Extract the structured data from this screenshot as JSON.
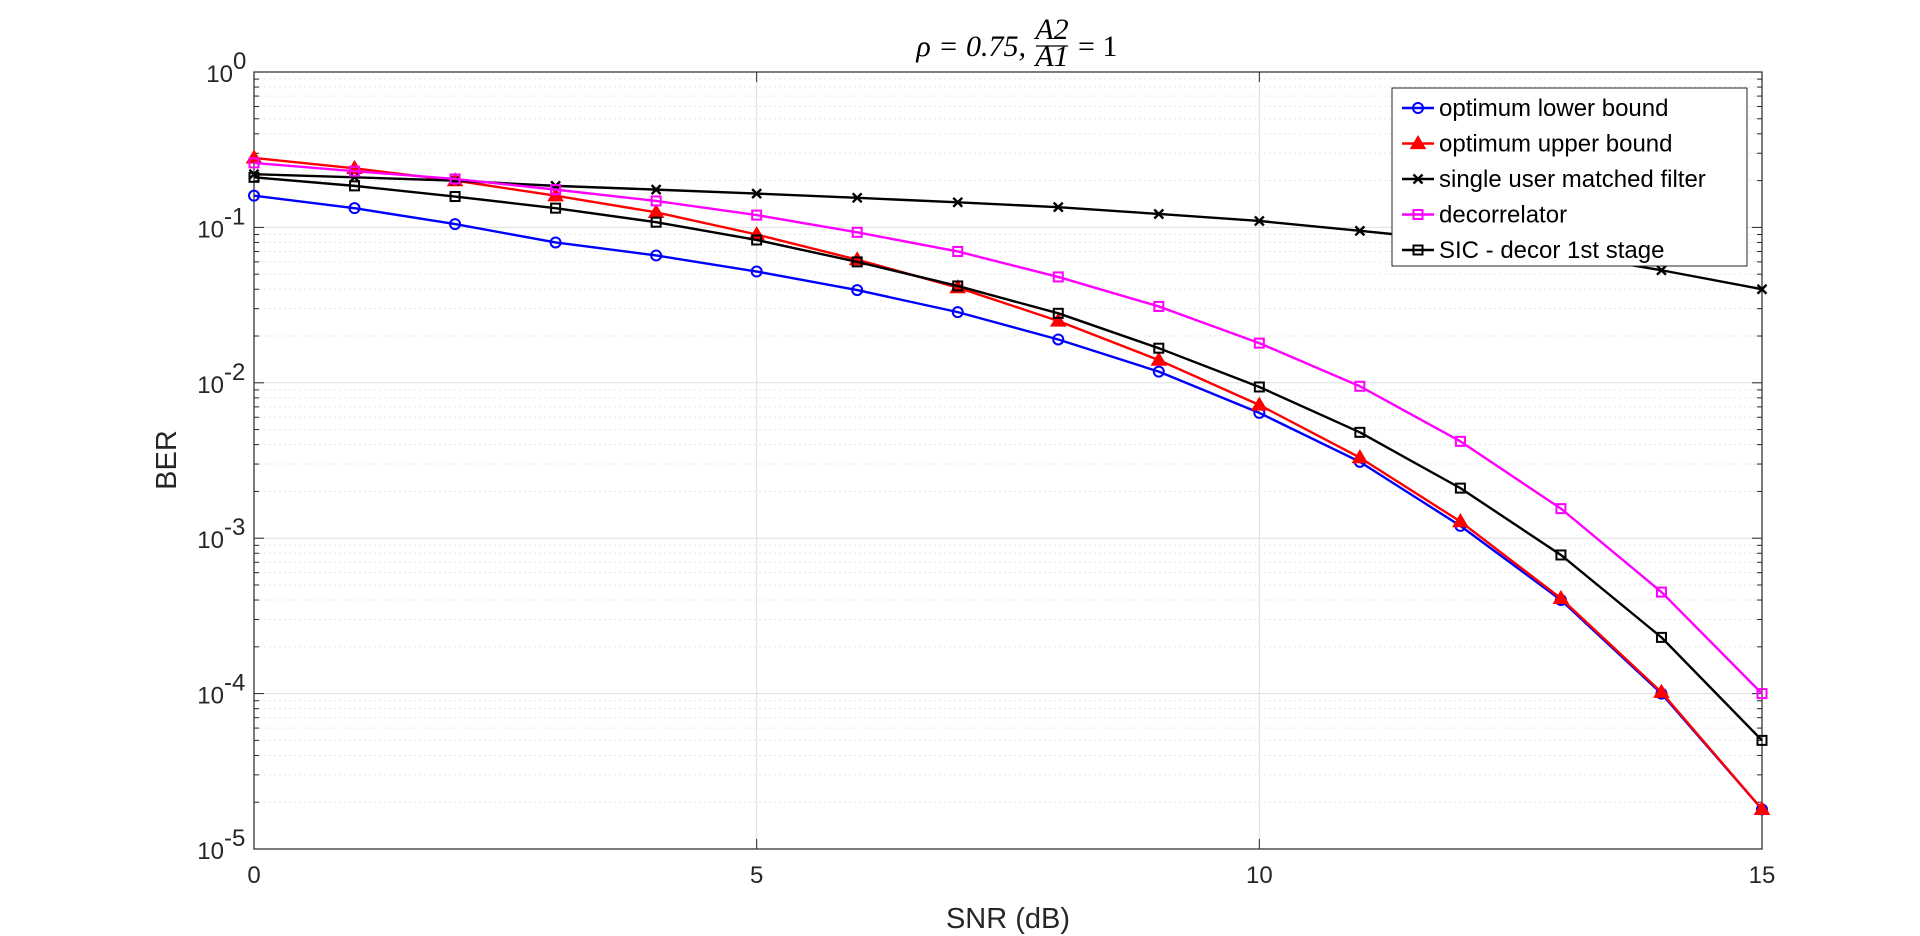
{
  "chart_data": {
    "type": "line",
    "title": {
      "prefix": "ρ = 0.75,",
      "frac_numerator": "A2",
      "frac_denominator": "A1",
      "suffix": "= 1"
    },
    "xlabel": "SNR (dB)",
    "ylabel": "BER",
    "xlim": [
      0,
      15
    ],
    "ylim": [
      1e-05,
      1
    ],
    "yscale": "log",
    "grid": true,
    "minor_grid": true,
    "legend_position": "top-right",
    "x_ticks": [
      0,
      5,
      10,
      15
    ],
    "y_ticks": [
      {
        "base": "10",
        "exp": "0"
      },
      {
        "base": "10",
        "exp": "-1"
      },
      {
        "base": "10",
        "exp": "-2"
      },
      {
        "base": "10",
        "exp": "-3"
      },
      {
        "base": "10",
        "exp": "-4"
      },
      {
        "base": "10",
        "exp": "-5"
      }
    ],
    "x": [
      0,
      1,
      2,
      3,
      4,
      5,
      6,
      7,
      8,
      9,
      10,
      11,
      12,
      13,
      14,
      15
    ],
    "series": [
      {
        "name": "optimum lower bound",
        "color": "#0000ff",
        "marker": "circle",
        "values": [
          0.16,
          0.133,
          0.105,
          0.08,
          0.066,
          0.052,
          0.0395,
          0.0285,
          0.019,
          0.0118,
          0.0064,
          0.0031,
          0.0012,
          0.0004,
          0.0001,
          1.8e-05
        ]
      },
      {
        "name": "optimum upper bound",
        "color": "#ff0000",
        "marker": "triangle",
        "values": [
          0.28,
          0.24,
          0.2,
          0.16,
          0.125,
          0.09,
          0.062,
          0.041,
          0.025,
          0.014,
          0.0072,
          0.0033,
          0.00128,
          0.00041,
          0.000102,
          1.8e-05
        ]
      },
      {
        "name": "single user matched filter",
        "color": "#000000",
        "marker": "x",
        "values": [
          0.22,
          0.21,
          0.2,
          0.185,
          0.175,
          0.165,
          0.155,
          0.145,
          0.135,
          0.122,
          0.11,
          0.095,
          0.082,
          0.068,
          0.053,
          0.04
        ]
      },
      {
        "name": "decorrelator",
        "color": "#ff00ff",
        "marker": "square",
        "values": [
          0.26,
          0.23,
          0.205,
          0.175,
          0.148,
          0.12,
          0.093,
          0.07,
          0.048,
          0.031,
          0.018,
          0.0095,
          0.0042,
          0.00155,
          0.00045,
          0.0001
        ]
      },
      {
        "name": "SIC - decor 1st stage",
        "color": "#000000",
        "marker": "square",
        "values": [
          0.21,
          0.185,
          0.158,
          0.133,
          0.108,
          0.083,
          0.06,
          0.042,
          0.028,
          0.0167,
          0.0094,
          0.0048,
          0.0021,
          0.00078,
          0.00023,
          5e-05
        ]
      }
    ]
  }
}
